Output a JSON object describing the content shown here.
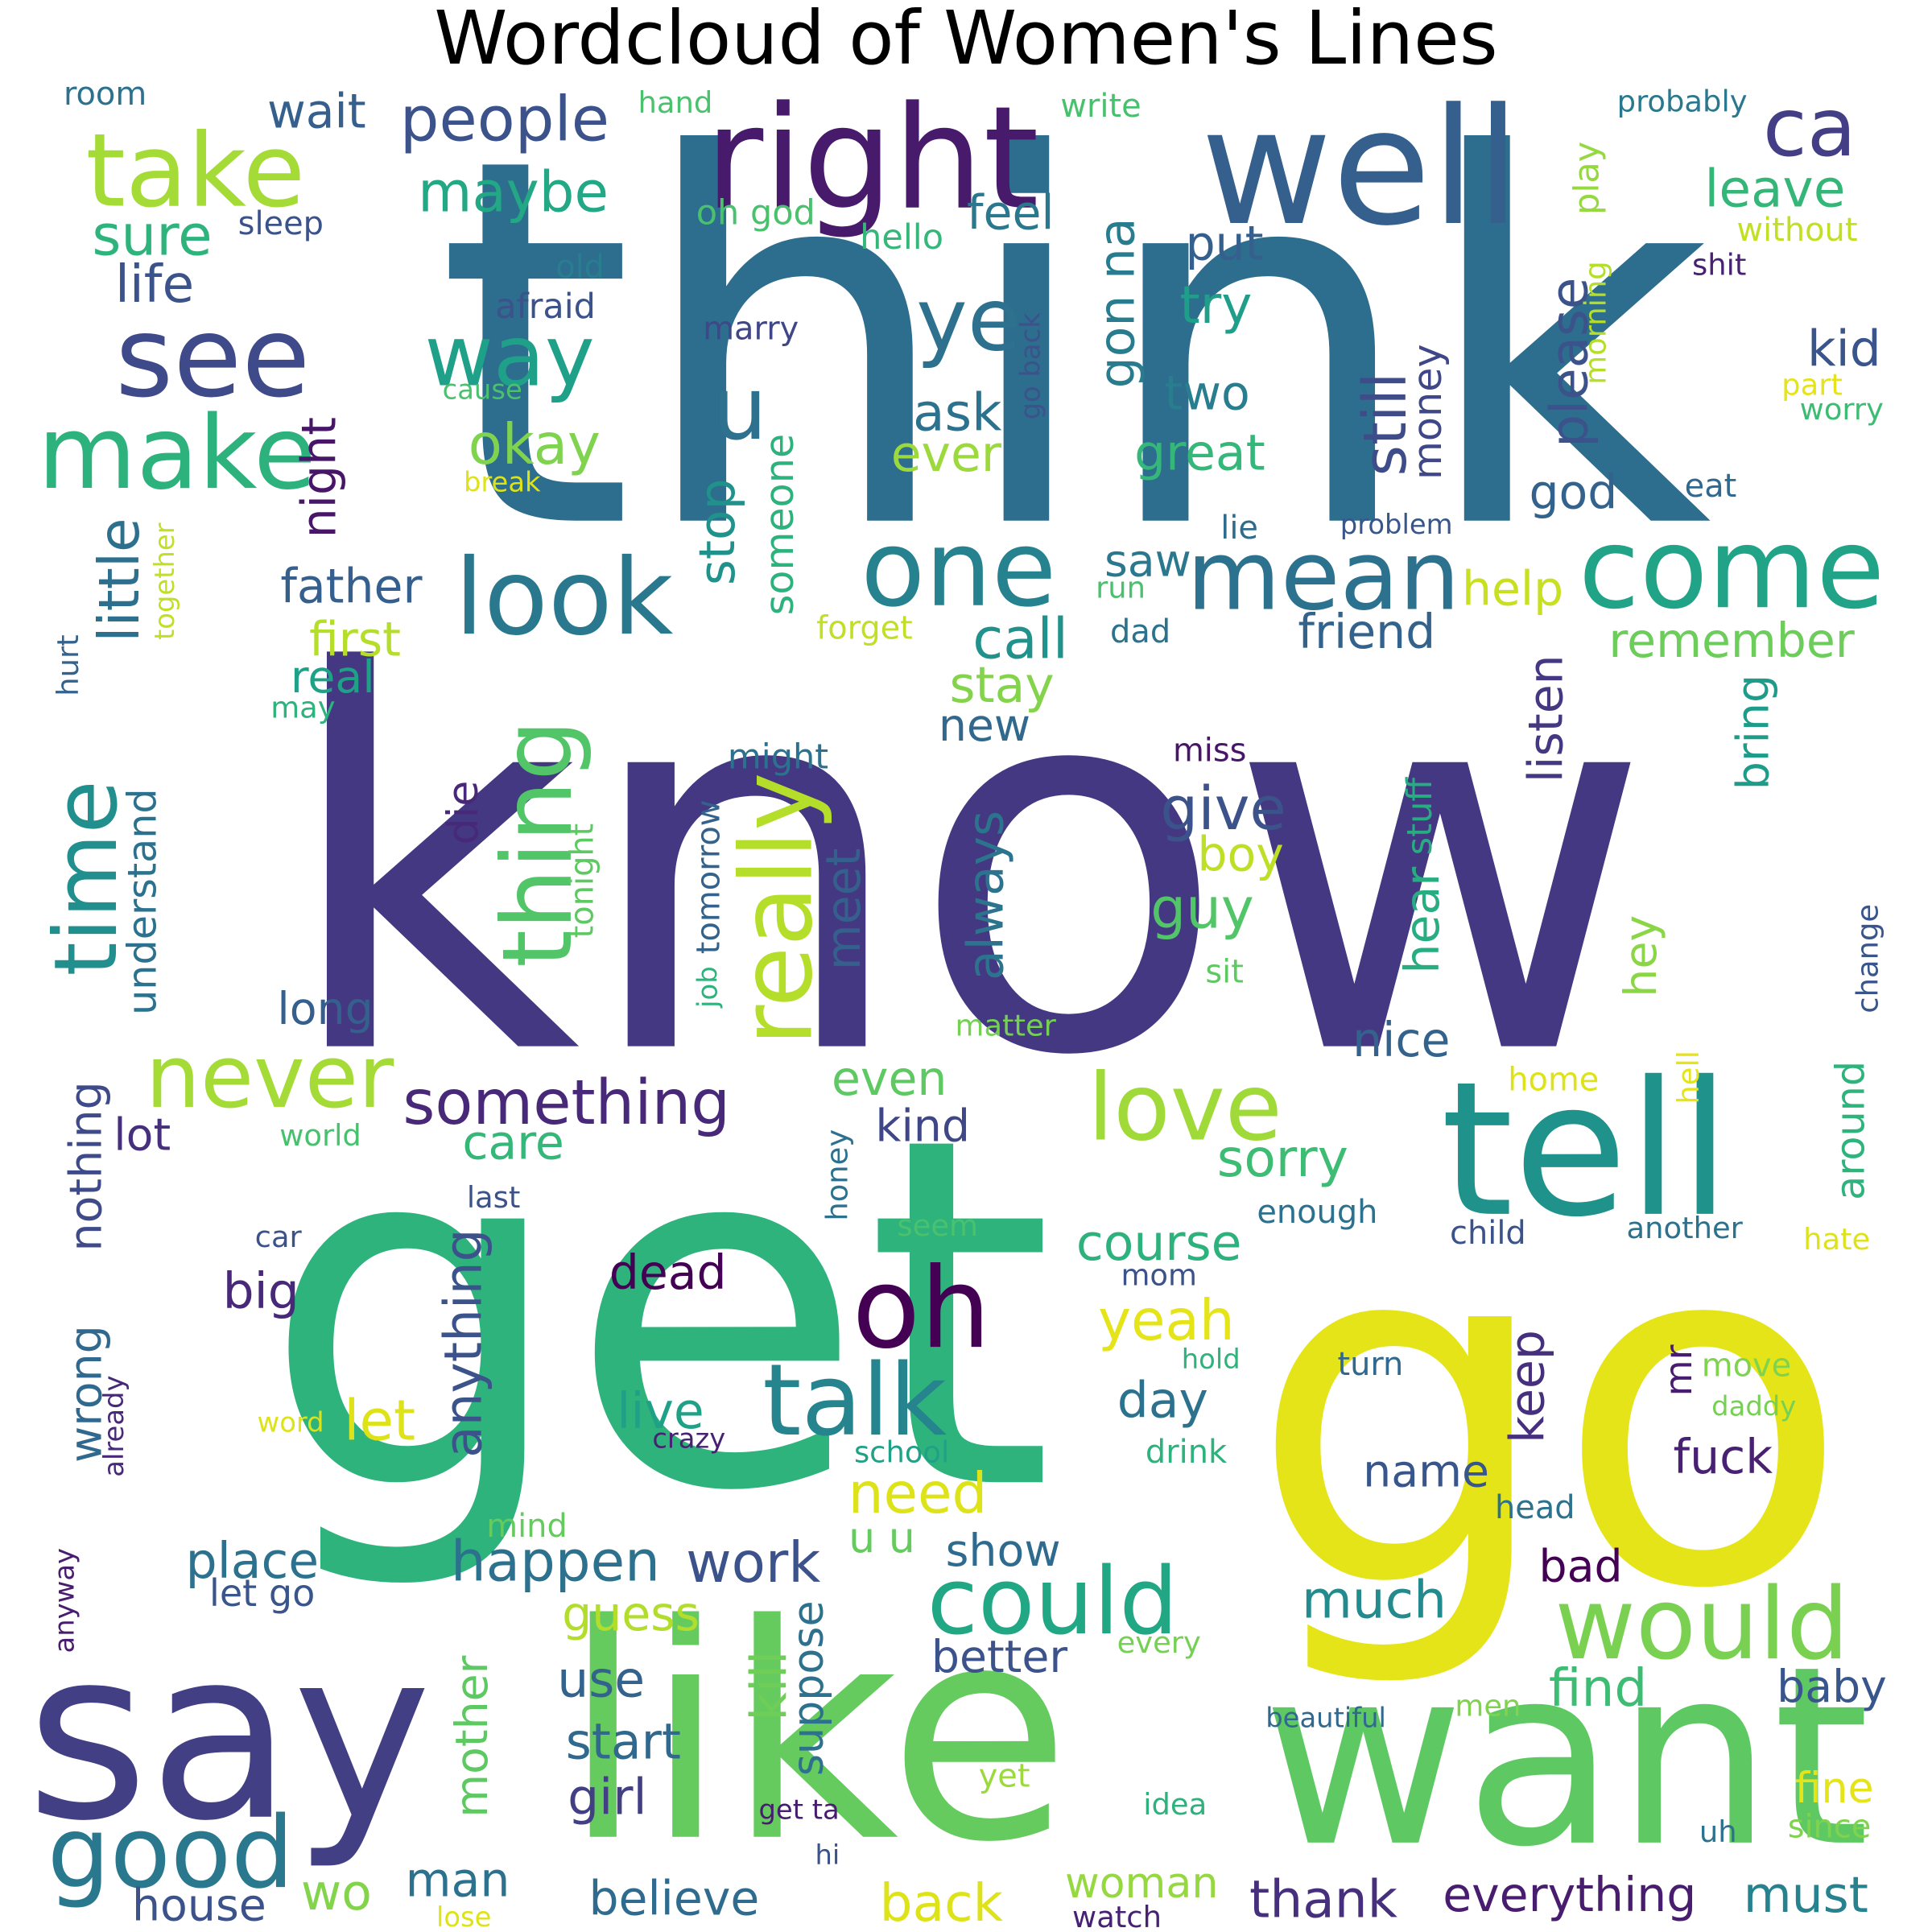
{
  "title": "Wordcloud of Women's Lines",
  "words": [
    {
      "text": "know",
      "color": "#453882"
    },
    {
      "text": "think",
      "color": "#2d6d8e"
    },
    {
      "text": "get",
      "color": "#2eb37c"
    },
    {
      "text": "go",
      "color": "#e5e419"
    },
    {
      "text": "like",
      "color": "#65cb5e"
    },
    {
      "text": "want",
      "color": "#5ec962"
    },
    {
      "text": "say",
      "color": "#423f85"
    },
    {
      "text": "tell",
      "color": "#1f938b"
    },
    {
      "text": "well",
      "color": "#355f8d"
    },
    {
      "text": "right",
      "color": "#481a6c"
    },
    {
      "text": "see",
      "color": "#3e4a89"
    },
    {
      "text": "take",
      "color": "#a5db36"
    },
    {
      "text": "make",
      "color": "#2db27d"
    },
    {
      "text": "come",
      "color": "#20a386"
    },
    {
      "text": "one",
      "color": "#26828e"
    },
    {
      "text": "look",
      "color": "#2a788e"
    },
    {
      "text": "mean",
      "color": "#2c728e"
    },
    {
      "text": "oh",
      "color": "#440154"
    },
    {
      "text": "talk",
      "color": "#25848e"
    },
    {
      "text": "could",
      "color": "#22a785"
    },
    {
      "text": "would",
      "color": "#7ad151"
    },
    {
      "text": "good",
      "color": "#2a788e"
    },
    {
      "text": "love",
      "color": "#a0da39"
    },
    {
      "text": "never",
      "color": "#a5db36"
    },
    {
      "text": "really",
      "color": "#b5de2b"
    },
    {
      "text": "thing",
      "color": "#52c569"
    },
    {
      "text": "time",
      "color": "#218f8d"
    },
    {
      "text": "way",
      "color": "#1fa088"
    },
    {
      "text": "ye",
      "color": "#2d718e"
    },
    {
      "text": "u",
      "color": "#2d718e"
    },
    {
      "text": "ca",
      "color": "#433e85"
    },
    {
      "text": "something",
      "color": "#482878"
    },
    {
      "text": "people",
      "color": "#3b528b"
    },
    {
      "text": "maybe",
      "color": "#22a884"
    },
    {
      "text": "sure",
      "color": "#2eb37c"
    },
    {
      "text": "life",
      "color": "#3b528b"
    },
    {
      "text": "okay",
      "color": "#7fd34e"
    },
    {
      "text": "ask",
      "color": "#2c728e"
    },
    {
      "text": "ever",
      "color": "#9bd93c"
    },
    {
      "text": "try",
      "color": "#1f9e89"
    },
    {
      "text": "two",
      "color": "#287d8e"
    },
    {
      "text": "great",
      "color": "#35b779"
    },
    {
      "text": "still",
      "color": "#3e4c8a"
    },
    {
      "text": "money",
      "color": "#3f4788"
    },
    {
      "text": "please",
      "color": "#3b528b"
    },
    {
      "text": "leave",
      "color": "#34b679"
    },
    {
      "text": "kid",
      "color": "#39558c"
    },
    {
      "text": "feel",
      "color": "#2a788e"
    },
    {
      "text": "put",
      "color": "#355f8d"
    },
    {
      "text": "gon na",
      "color": "#287c8e"
    },
    {
      "text": "wait",
      "color": "#355f8d"
    },
    {
      "text": "stop",
      "color": "#21918c"
    },
    {
      "text": "someone",
      "color": "#2db27d"
    },
    {
      "text": "little",
      "color": "#2d708e"
    },
    {
      "text": "night",
      "color": "#481668"
    },
    {
      "text": "father",
      "color": "#355f8d"
    },
    {
      "text": "first",
      "color": "#b5de2b"
    },
    {
      "text": "real",
      "color": "#1fa188"
    },
    {
      "text": "call",
      "color": "#21918c"
    },
    {
      "text": "stay",
      "color": "#84d44b"
    },
    {
      "text": "new",
      "color": "#31688e"
    },
    {
      "text": "help",
      "color": "#c8e020"
    },
    {
      "text": "friend",
      "color": "#33638d"
    },
    {
      "text": "saw",
      "color": "#2a778e"
    },
    {
      "text": "god",
      "color": "#33638d"
    },
    {
      "text": "remember",
      "color": "#6ccd5a"
    },
    {
      "text": "listen",
      "color": "#453781"
    },
    {
      "text": "bring",
      "color": "#1e9c89"
    },
    {
      "text": "give",
      "color": "#3b528b"
    },
    {
      "text": "guy",
      "color": "#52c569"
    },
    {
      "text": "boy",
      "color": "#bddf26"
    },
    {
      "text": "always",
      "color": "#2c738e"
    },
    {
      "text": "meet",
      "color": "#355f8d"
    },
    {
      "text": "hear",
      "color": "#27ad81"
    },
    {
      "text": "stuff",
      "color": "#27ad81"
    },
    {
      "text": "hey",
      "color": "#8bd646"
    },
    {
      "text": "understand",
      "color": "#2c728e"
    },
    {
      "text": "long",
      "color": "#355f8d"
    },
    {
      "text": "die",
      "color": "#482878"
    },
    {
      "text": "tomorrow",
      "color": "#33638d"
    },
    {
      "text": "tonight",
      "color": "#5ec962"
    },
    {
      "text": "nice",
      "color": "#33638d"
    },
    {
      "text": "even",
      "color": "#5ec962"
    },
    {
      "text": "kind",
      "color": "#3f4788"
    },
    {
      "text": "sorry",
      "color": "#3dbc74"
    },
    {
      "text": "care",
      "color": "#35b779"
    },
    {
      "text": "lot",
      "color": "#46307e"
    },
    {
      "text": "nothing",
      "color": "#3e4a89"
    },
    {
      "text": "wrong",
      "color": "#31688e"
    },
    {
      "text": "anything",
      "color": "#3b528b"
    },
    {
      "text": "course",
      "color": "#2db27d"
    },
    {
      "text": "yeah",
      "color": "#e5e419"
    },
    {
      "text": "day",
      "color": "#2c728e"
    },
    {
      "text": "keep",
      "color": "#46307e"
    },
    {
      "text": "mr",
      "color": "#481c6e"
    },
    {
      "text": "fuck",
      "color": "#482173"
    },
    {
      "text": "big",
      "color": "#482878"
    },
    {
      "text": "dead",
      "color": "#440154"
    },
    {
      "text": "let",
      "color": "#dde318"
    },
    {
      "text": "live",
      "color": "#1fa188"
    },
    {
      "text": "need",
      "color": "#dde318"
    },
    {
      "text": "happen",
      "color": "#2c728e"
    },
    {
      "text": "work",
      "color": "#3b528b"
    },
    {
      "text": "much",
      "color": "#238a8d"
    },
    {
      "text": "place",
      "color": "#2c728e"
    },
    {
      "text": "let go",
      "color": "#39558c"
    },
    {
      "text": "guess",
      "color": "#b2dd2d"
    },
    {
      "text": "use",
      "color": "#33638d"
    },
    {
      "text": "start",
      "color": "#31688e"
    },
    {
      "text": "girl",
      "color": "#423f85"
    },
    {
      "text": "kill",
      "color": "#6ece58"
    },
    {
      "text": "suppose",
      "color": "#2d718e"
    },
    {
      "text": "mother",
      "color": "#5ec962"
    },
    {
      "text": "better",
      "color": "#3b528b"
    },
    {
      "text": "find",
      "color": "#3dbc74"
    },
    {
      "text": "baby",
      "color": "#39568c"
    },
    {
      "text": "bad",
      "color": "#440154"
    },
    {
      "text": "show",
      "color": "#2f6b8e"
    },
    {
      "text": "name",
      "color": "#39568c"
    },
    {
      "text": "house",
      "color": "#3b528b"
    },
    {
      "text": "man",
      "color": "#2c728e"
    },
    {
      "text": "wo",
      "color": "#84d44b"
    },
    {
      "text": "believe",
      "color": "#2f6b8e"
    },
    {
      "text": "back",
      "color": "#dde318"
    },
    {
      "text": "woman",
      "color": "#95d840"
    },
    {
      "text": "thank",
      "color": "#46307e"
    },
    {
      "text": "everything",
      "color": "#481c6e"
    },
    {
      "text": "must",
      "color": "#26828e"
    },
    {
      "text": "fine",
      "color": "#e5e419"
    },
    {
      "text": "since",
      "color": "#7fd34e"
    },
    {
      "text": "room",
      "color": "#2c728e"
    },
    {
      "text": "hand",
      "color": "#4ac16d"
    },
    {
      "text": "write",
      "color": "#48c16e"
    },
    {
      "text": "probably",
      "color": "#2a788e"
    },
    {
      "text": "sleep",
      "color": "#3b528b"
    },
    {
      "text": "oh god",
      "color": "#4ac16d"
    },
    {
      "text": "hello",
      "color": "#35b779"
    },
    {
      "text": "play",
      "color": "#95d840"
    },
    {
      "text": "without",
      "color": "#c2df23"
    },
    {
      "text": "shit",
      "color": "#482173"
    },
    {
      "text": "old",
      "color": "#287d8e"
    },
    {
      "text": "afraid",
      "color": "#3b528b"
    },
    {
      "text": "marry",
      "color": "#3f4788"
    },
    {
      "text": "go back",
      "color": "#3b528b"
    },
    {
      "text": "morning",
      "color": "#b5de2b"
    },
    {
      "text": "part",
      "color": "#e5e419"
    },
    {
      "text": "worry",
      "color": "#3dbc74"
    },
    {
      "text": "cause",
      "color": "#4ac16d"
    },
    {
      "text": "break",
      "color": "#dde318"
    },
    {
      "text": "lie",
      "color": "#2f6b8e"
    },
    {
      "text": "problem",
      "color": "#39568c"
    },
    {
      "text": "eat",
      "color": "#31688e"
    },
    {
      "text": "together",
      "color": "#c2df23"
    },
    {
      "text": "hurt",
      "color": "#33638d"
    },
    {
      "text": "forget",
      "color": "#c2df23"
    },
    {
      "text": "run",
      "color": "#4ac16d"
    },
    {
      "text": "dad",
      "color": "#2c728e"
    },
    {
      "text": "may",
      "color": "#2eb37c"
    },
    {
      "text": "might",
      "color": "#2c728e"
    },
    {
      "text": "miss",
      "color": "#481668"
    },
    {
      "text": "job",
      "color": "#2eb37c"
    },
    {
      "text": "sit",
      "color": "#5ec962"
    },
    {
      "text": "matter",
      "color": "#75d054"
    },
    {
      "text": "change",
      "color": "#39558c"
    },
    {
      "text": "home",
      "color": "#dde318"
    },
    {
      "text": "world",
      "color": "#48c16e"
    },
    {
      "text": "honey",
      "color": "#2c728e"
    },
    {
      "text": "hell",
      "color": "#e5e419"
    },
    {
      "text": "around",
      "color": "#2eb37c"
    },
    {
      "text": "last",
      "color": "#3b528b"
    },
    {
      "text": "enough",
      "color": "#2c728e"
    },
    {
      "text": "car",
      "color": "#3b528b"
    },
    {
      "text": "seem",
      "color": "#4ac16d"
    },
    {
      "text": "child",
      "color": "#3b528b"
    },
    {
      "text": "another",
      "color": "#2c728e"
    },
    {
      "text": "hate",
      "color": "#dde318"
    },
    {
      "text": "mom",
      "color": "#3b528b"
    },
    {
      "text": "hold",
      "color": "#2eb37c"
    },
    {
      "text": "turn",
      "color": "#31688e"
    },
    {
      "text": "move",
      "color": "#7fd34e"
    },
    {
      "text": "daddy",
      "color": "#75d054"
    },
    {
      "text": "word",
      "color": "#dde318"
    },
    {
      "text": "crazy",
      "color": "#482173"
    },
    {
      "text": "school",
      "color": "#1fa188"
    },
    {
      "text": "drink",
      "color": "#2db27d"
    },
    {
      "text": "already",
      "color": "#482878"
    },
    {
      "text": "mind",
      "color": "#65cb5e"
    },
    {
      "text": "head",
      "color": "#2c728e"
    },
    {
      "text": "u u",
      "color": "#65cb5e"
    },
    {
      "text": "anyway",
      "color": "#481c6e"
    },
    {
      "text": "every",
      "color": "#75d054"
    },
    {
      "text": "beautiful",
      "color": "#31688e"
    },
    {
      "text": "men",
      "color": "#7fd34e"
    },
    {
      "text": "yet",
      "color": "#9bd93c"
    },
    {
      "text": "idea",
      "color": "#2db27d"
    },
    {
      "text": "get ta",
      "color": "#481c6e"
    },
    {
      "text": "hi",
      "color": "#3b528b"
    },
    {
      "text": "uh",
      "color": "#2c728e"
    },
    {
      "text": "lose",
      "color": "#dde318"
    },
    {
      "text": "watch",
      "color": "#482173"
    }
  ]
}
